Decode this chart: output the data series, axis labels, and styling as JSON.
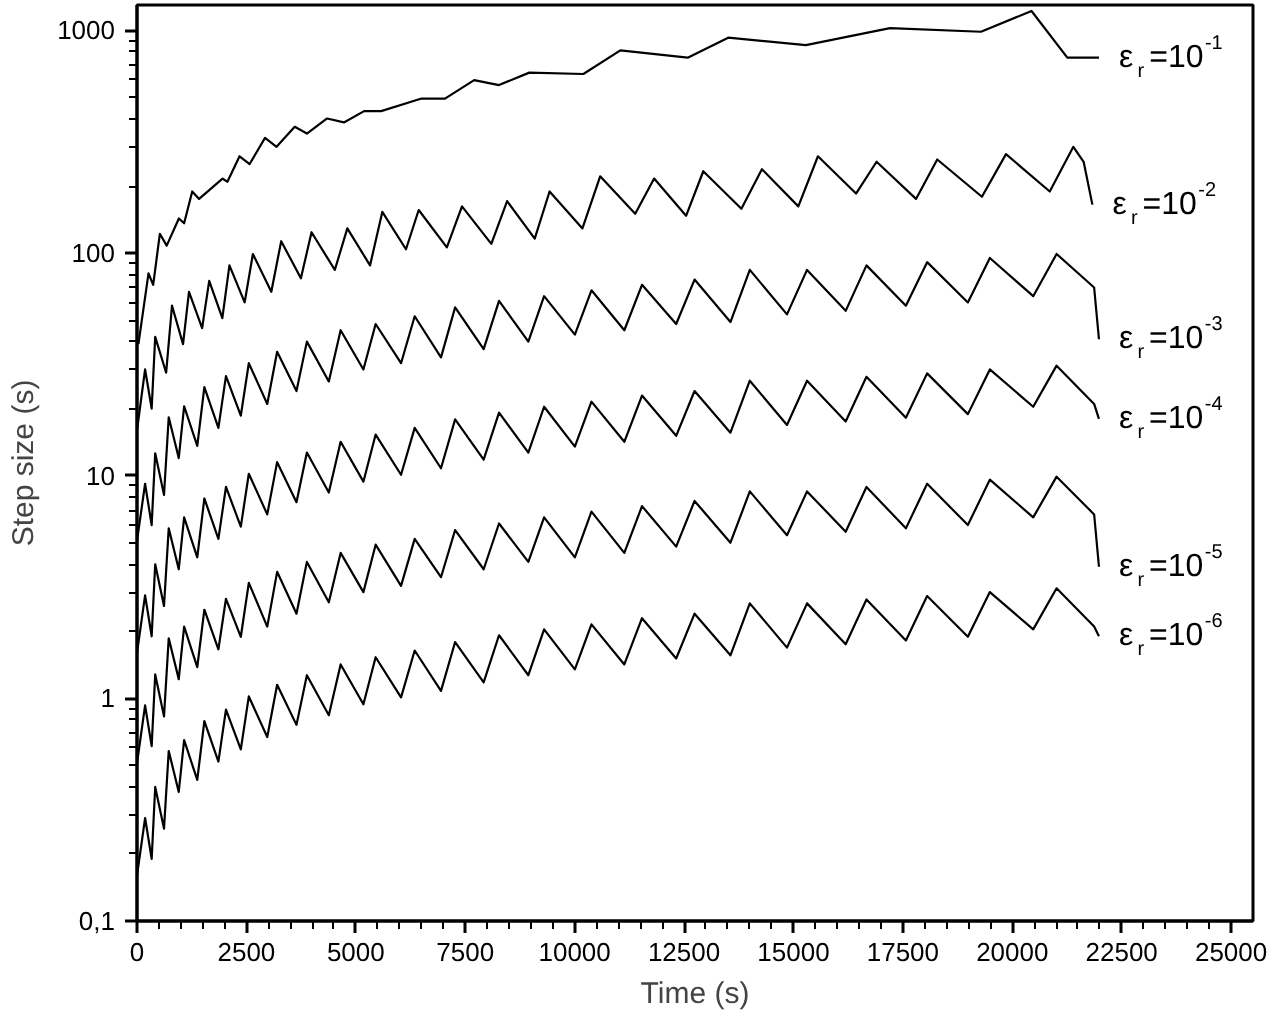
{
  "chart_data": {
    "type": "line",
    "xlabel": "Time (s)",
    "ylabel": "Step size (s)",
    "x": [
      0,
      185,
      335,
      416,
      617,
      725,
      954,
      1077,
      1377,
      1539,
      1860,
      2033,
      2372,
      2555,
      2976,
      3202,
      3644,
      3882,
      4383,
      4653,
      5173,
      5453,
      6033,
      6345,
      6946,
      7269,
      7921,
      8272,
      8942,
      9302,
      10005,
      10384,
      11135,
      11539,
      12320,
      12740,
      13560,
      14002,
      14852,
      15310,
      16193,
      16668,
      17569,
      18054,
      18985,
      19487,
      20478,
      21012,
      21870,
      21980
    ],
    "series": [
      {
        "name": "ε$_{r}$=10$^{-1}$",
        "color": "#000000",
        "x": [
          32,
          263,
          370,
          522,
          679,
          957,
          1077,
          1262,
          1419,
          1955,
          2066,
          2343,
          2574,
          2925,
          3189,
          3604,
          3882,
          4344,
          4728,
          5189,
          5578,
          6502,
          7038,
          7704,
          8272,
          8965,
          10199,
          11044,
          12583,
          13508,
          15282,
          17205,
          19284,
          20439,
          21257,
          21982
        ],
        "values": [
          39,
          81,
          72,
          122,
          108,
          143,
          136,
          189,
          175,
          216,
          209,
          272,
          251,
          329,
          300,
          369,
          344,
          402,
          386,
          434,
          434,
          494,
          494,
          598,
          568,
          646,
          637,
          813,
          754,
          927,
          859,
          1023,
          986,
          1222,
          754,
          754
        ]
      },
      {
        "name": "ε$_{r}$=10$^{-2}$",
        "color": "#000000",
        "x": [
          0,
          185,
          335,
          416,
          666,
          800,
          1052,
          1188,
          1488,
          1650,
          1950,
          2112,
          2460,
          2648,
          3069,
          3295,
          3745,
          3988,
          4520,
          4806,
          5325,
          5605,
          6146,
          6437,
          7080,
          7426,
          8096,
          8457,
          9088,
          9427,
          10178,
          10583,
          11384,
          11816,
          12546,
          12939,
          13810,
          14279,
          15111,
          15559,
          16430,
          16899,
          17800,
          18285,
          19306,
          19856,
          20856,
          21395,
          21630,
          21830
        ],
        "values": [
          16,
          30,
          20,
          42,
          29,
          58,
          39,
          67,
          46,
          75,
          51,
          88,
          60,
          99,
          67,
          113,
          77,
          124,
          84,
          129,
          88,
          153,
          104,
          156,
          106,
          162,
          110,
          171,
          116,
          189,
          129,
          221,
          150,
          216,
          147,
          233,
          158,
          238,
          162,
          272,
          185,
          257,
          175,
          263,
          179,
          278,
          189,
          300,
          257,
          165
        ]
      },
      {
        "name": "ε$_{r}$=10$^{-3}$",
        "color": "#000000",
        "values": [
          5.1,
          9.2,
          6,
          12.6,
          8.2,
          18.3,
          12,
          20.5,
          13.6,
          25,
          16.4,
          28,
          18.6,
          32,
          21,
          36,
          24,
          40,
          26.5,
          45,
          30,
          48,
          32,
          52,
          34,
          57,
          37,
          61,
          40,
          64,
          43,
          68,
          45,
          72,
          48,
          76,
          49,
          84,
          53,
          84,
          55,
          88,
          58,
          91,
          60,
          95,
          64,
          99,
          70,
          41
        ]
      },
      {
        "name": "ε$_{r}$=10$^{-4}$",
        "color": "#000000",
        "values": [
          1.6,
          2.9,
          1.9,
          4,
          2.6,
          5.8,
          3.8,
          6.5,
          4.3,
          7.9,
          5.2,
          8.9,
          5.9,
          10.2,
          6.7,
          11.5,
          7.6,
          12.7,
          8.4,
          14.2,
          9.4,
          15.3,
          10.1,
          16.4,
          10.8,
          17.9,
          11.8,
          19.2,
          12.7,
          20.4,
          13.5,
          21.5,
          14.2,
          22.9,
          15.1,
          24,
          15.6,
          26.7,
          16.9,
          26.7,
          17.5,
          27.8,
          18.2,
          28.8,
          18.9,
          30,
          20.4,
          31.2,
          21,
          18
        ]
      },
      {
        "name": "ε$_{r}$=10$^{-5}$",
        "color": "#000000",
        "values": [
          0.51,
          0.93,
          0.61,
          1.28,
          0.83,
          1.86,
          1.22,
          2.1,
          1.38,
          2.5,
          1.66,
          2.8,
          1.89,
          3.3,
          2.1,
          3.7,
          2.4,
          4.1,
          2.7,
          4.5,
          3.0,
          4.9,
          3.2,
          5.2,
          3.5,
          5.7,
          3.8,
          6.1,
          4.1,
          6.5,
          4.3,
          6.9,
          4.5,
          7.3,
          4.8,
          7.7,
          5.0,
          8.5,
          5.4,
          8.5,
          5.6,
          8.9,
          5.8,
          9.2,
          6.0,
          9.6,
          6.5,
          9.9,
          6.7,
          3.9
        ]
      },
      {
        "name": "ε$_{r}$=10$^{-6}$",
        "color": "#000000",
        "values": [
          0.16,
          0.29,
          0.19,
          0.4,
          0.26,
          0.58,
          0.38,
          0.65,
          0.43,
          0.79,
          0.52,
          0.89,
          0.59,
          1.02,
          0.67,
          1.15,
          0.76,
          1.27,
          0.84,
          1.42,
          0.94,
          1.53,
          1.01,
          1.64,
          1.08,
          1.79,
          1.18,
          1.92,
          1.27,
          2.04,
          1.35,
          2.15,
          1.42,
          2.29,
          1.51,
          2.4,
          1.56,
          2.67,
          1.69,
          2.67,
          1.75,
          2.78,
          1.82,
          2.88,
          1.89,
          3.0,
          2.04,
          3.12,
          2.1,
          1.9
        ]
      }
    ],
    "xlim": [
      0,
      25500
    ],
    "ylim": [
      0.1,
      1300
    ],
    "xticks": [
      0,
      2500,
      5000,
      7500,
      10000,
      12500,
      15000,
      17500,
      20000,
      22500,
      25000
    ],
    "yticks": [
      {
        "value": 0.1,
        "label": "0,1"
      },
      1,
      10,
      100,
      1000
    ],
    "log": "y",
    "grid": false,
    "legend": false,
    "marker": "none",
    "line_style": "solid"
  }
}
